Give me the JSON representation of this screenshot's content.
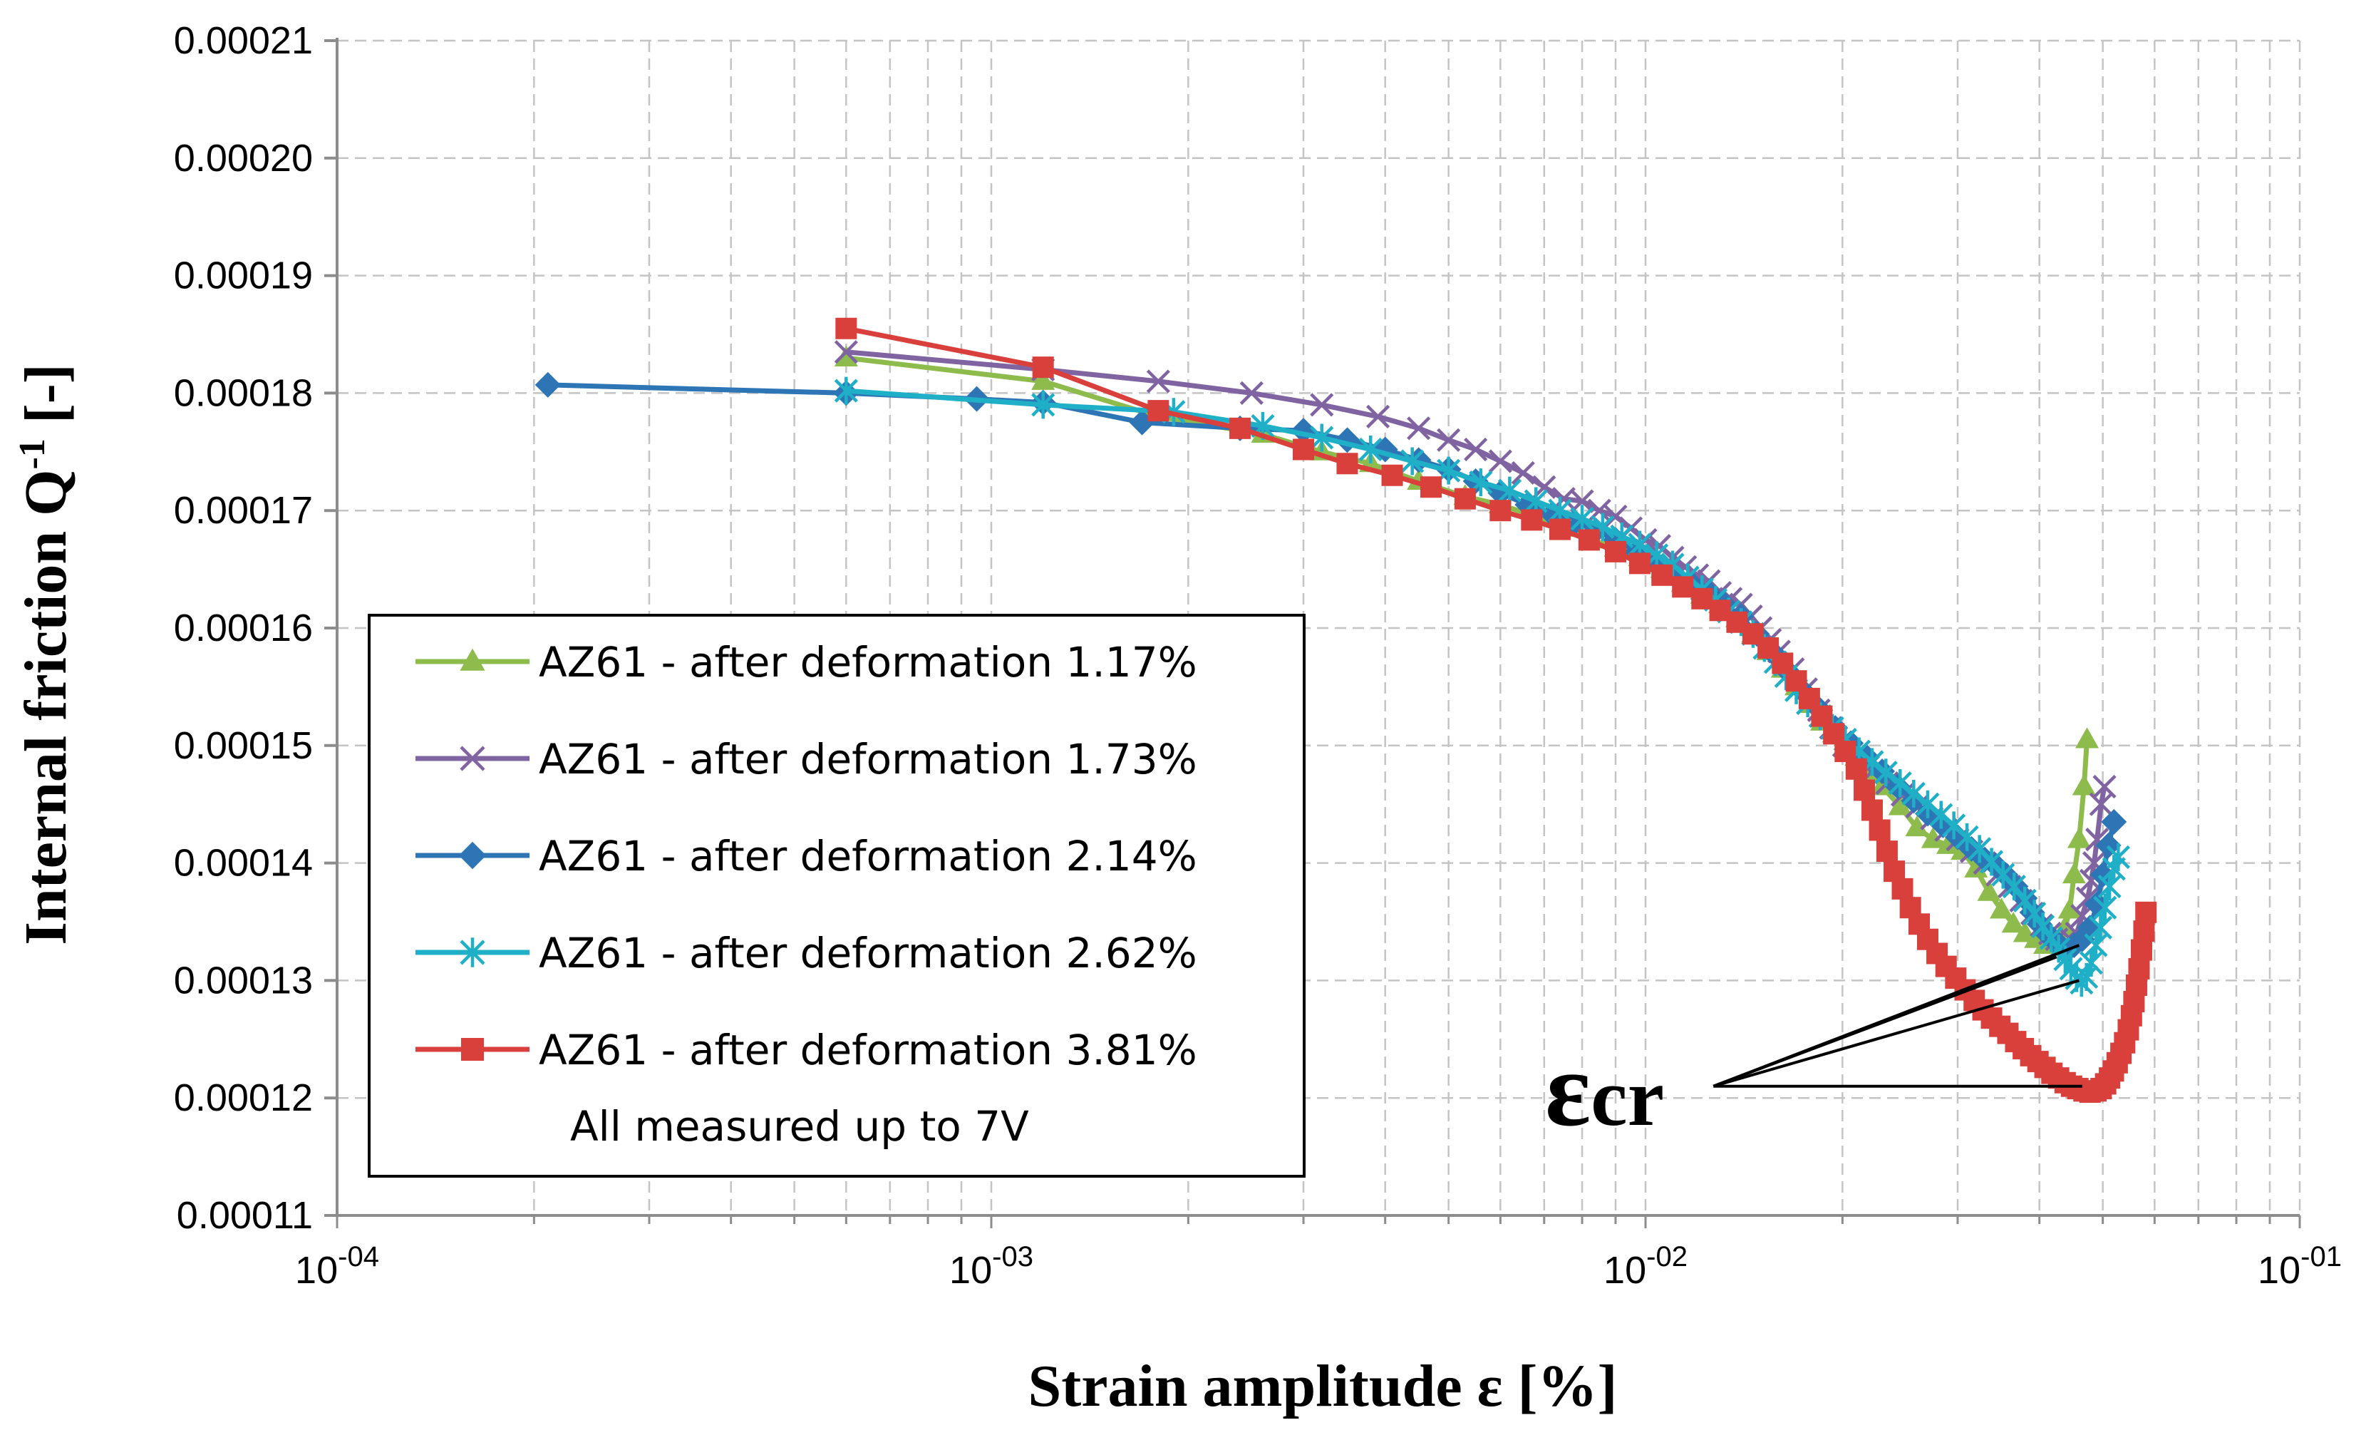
{
  "chart_data": {
    "type": "line",
    "xscale": "log",
    "xlim": [
      0.0001,
      0.1
    ],
    "ylim": [
      0.00011,
      0.00021
    ],
    "xlabel": "Strain amplitude ε [%]",
    "ylabel": "Internal friction Q",
    "ylabel_sup": "-1",
    "ylabel_suffix": " [-]",
    "x_ticks": [
      {
        "value": 0.0001,
        "base": "10",
        "exp": "-04"
      },
      {
        "value": 0.001,
        "base": "10",
        "exp": "-03"
      },
      {
        "value": 0.01,
        "base": "10",
        "exp": "-02"
      },
      {
        "value": 0.1,
        "base": "10",
        "exp": "-01"
      }
    ],
    "y_ticks": [
      "0.00011",
      "0.00012",
      "0.00013",
      "0.00014",
      "0.00015",
      "0.00016",
      "0.00017",
      "0.00018",
      "0.00019",
      "0.00020",
      "0.00021"
    ],
    "grid": true,
    "legend_position": "lower-left",
    "note": "All measured up to 7V",
    "annotation": {
      "text": "ε",
      "sub": "cr",
      "x": 0.0127,
      "y": 0.000121
    },
    "annotation_targets": [
      [
        0.0425,
        0.000132
      ],
      [
        0.046,
        0.000133
      ],
      [
        0.046,
        0.00013
      ],
      [
        0.0465,
        0.000121
      ]
    ],
    "series": [
      {
        "name": "AZ61 - after deformation 1.17%",
        "color": "#8DBB4C",
        "marker": "triangle",
        "x": [
          0.0006,
          0.0012,
          0.0018,
          0.0026,
          0.0032,
          0.0038,
          0.0045,
          0.0053,
          0.006,
          0.0068,
          0.0075,
          0.0083,
          0.009,
          0.0098,
          0.0106,
          0.0114,
          0.0122,
          0.013,
          0.0138,
          0.0146,
          0.0154,
          0.0162,
          0.017,
          0.0178,
          0.0186,
          0.0194,
          0.0202,
          0.021,
          0.022,
          0.023,
          0.0245,
          0.026,
          0.0275,
          0.029,
          0.0305,
          0.032,
          0.0335,
          0.035,
          0.0365,
          0.038,
          0.0395,
          0.0408,
          0.042,
          0.043,
          0.0438,
          0.0445,
          0.0452,
          0.046,
          0.0468,
          0.0473
        ],
        "y": [
          0.000183,
          0.000181,
          0.000178,
          0.0001765,
          0.000175,
          0.000174,
          0.0001725,
          0.0001712,
          0.0001705,
          0.0001695,
          0.0001685,
          0.0001675,
          0.0001668,
          0.000166,
          0.000165,
          0.0001638,
          0.0001628,
          0.000162,
          0.0001608,
          0.0001595,
          0.000158,
          0.0001565,
          0.000155,
          0.0001535,
          0.000152,
          0.000151,
          0.00015,
          0.000149,
          0.0001477,
          0.0001465,
          0.0001448,
          0.000143,
          0.000142,
          0.0001415,
          0.000141,
          0.0001395,
          0.0001375,
          0.000136,
          0.0001348,
          0.000134,
          0.0001335,
          0.000133,
          0.000133,
          0.0001335,
          0.0001345,
          0.000136,
          0.000139,
          0.000142,
          0.0001465,
          0.0001505
        ]
      },
      {
        "name": "AZ61 - after deformation 1.73%",
        "color": "#8064A2",
        "marker": "x",
        "x": [
          0.0006,
          0.0012,
          0.0018,
          0.0025,
          0.0032,
          0.0039,
          0.0045,
          0.005,
          0.0055,
          0.006,
          0.0065,
          0.007,
          0.0075,
          0.008,
          0.0085,
          0.009,
          0.0095,
          0.01,
          0.0105,
          0.011,
          0.0115,
          0.012,
          0.0125,
          0.013,
          0.0135,
          0.014,
          0.0145,
          0.015,
          0.0155,
          0.016,
          0.0168,
          0.0176,
          0.0184,
          0.0192,
          0.0201,
          0.0211,
          0.0222,
          0.0234,
          0.0247,
          0.026,
          0.0274,
          0.0288,
          0.03,
          0.0315,
          0.033,
          0.0345,
          0.036,
          0.0375,
          0.039,
          0.0403,
          0.0415,
          0.0425,
          0.0436,
          0.0446,
          0.0456,
          0.0465,
          0.0474,
          0.048,
          0.0485,
          0.049,
          0.0497,
          0.0503
        ],
        "y": [
          0.0001835,
          0.000182,
          0.000181,
          0.00018,
          0.000179,
          0.000178,
          0.000177,
          0.000176,
          0.0001752,
          0.0001742,
          0.0001732,
          0.000172,
          0.000171,
          0.0001708,
          0.00017,
          0.0001695,
          0.0001685,
          0.0001675,
          0.000167,
          0.000166,
          0.0001652,
          0.0001645,
          0.000164,
          0.000163,
          0.0001625,
          0.000162,
          0.000161,
          0.00016,
          0.000159,
          0.000158,
          0.0001565,
          0.0001548,
          0.000153,
          0.0001515,
          0.00015,
          0.000149,
          0.0001478,
          0.0001468,
          0.0001458,
          0.0001448,
          0.0001438,
          0.0001428,
          0.000142,
          0.000141,
          0.00014,
          0.000139,
          0.000138,
          0.0001368,
          0.0001357,
          0.0001347,
          0.000134,
          0.0001335,
          0.0001332,
          0.0001335,
          0.000134,
          0.0001355,
          0.000137,
          0.0001385,
          0.00014,
          0.000142,
          0.000145,
          0.0001465
        ]
      },
      {
        "name": "AZ61 - after deformation 2.14%",
        "color": "#2E75B6",
        "marker": "diamond",
        "x": [
          0.00021,
          0.0006,
          0.00095,
          0.0012,
          0.0017,
          0.0024,
          0.003,
          0.0035,
          0.004,
          0.0045,
          0.005,
          0.0055,
          0.006,
          0.0066,
          0.0072,
          0.0078,
          0.0084,
          0.009,
          0.0097,
          0.0104,
          0.0111,
          0.0118,
          0.0125,
          0.0132,
          0.014,
          0.0148,
          0.0156,
          0.0165,
          0.0175,
          0.0185,
          0.0195,
          0.0206,
          0.0218,
          0.023,
          0.0243,
          0.0257,
          0.027,
          0.0285,
          0.03,
          0.0315,
          0.033,
          0.0343,
          0.0355,
          0.0368,
          0.038,
          0.039,
          0.04,
          0.041,
          0.042,
          0.043,
          0.044,
          0.0452,
          0.0465,
          0.0478,
          0.049,
          0.05,
          0.051,
          0.052
        ],
        "y": [
          0.0001807,
          0.00018,
          0.0001795,
          0.0001792,
          0.0001775,
          0.000177,
          0.0001768,
          0.000176,
          0.0001752,
          0.0001743,
          0.0001735,
          0.0001725,
          0.0001715,
          0.0001705,
          0.0001697,
          0.000169,
          0.0001683,
          0.0001675,
          0.0001665,
          0.0001655,
          0.0001645,
          0.0001637,
          0.000163,
          0.000162,
          0.000161,
          0.0001595,
          0.000158,
          0.0001563,
          0.0001545,
          0.000153,
          0.0001515,
          0.0001502,
          0.000149,
          0.0001478,
          0.0001465,
          0.0001453,
          0.0001442,
          0.0001432,
          0.0001422,
          0.0001412,
          0.0001403,
          0.0001398,
          0.000139,
          0.000138,
          0.000137,
          0.0001358,
          0.0001348,
          0.000134,
          0.0001335,
          0.000133,
          0.0001325,
          0.000133,
          0.0001335,
          0.0001345,
          0.0001365,
          0.000139,
          0.0001415,
          0.0001435
        ]
      },
      {
        "name": "AZ61 - after deformation 2.62%",
        "color": "#1FB0C8",
        "marker": "star",
        "x": [
          0.0006,
          0.0012,
          0.0019,
          0.0026,
          0.0032,
          0.0038,
          0.0044,
          0.005,
          0.0056,
          0.0062,
          0.0068,
          0.0074,
          0.008,
          0.0086,
          0.0092,
          0.0098,
          0.0104,
          0.011,
          0.0116,
          0.0122,
          0.0128,
          0.0134,
          0.014,
          0.0146,
          0.0152,
          0.0158,
          0.0164,
          0.017,
          0.0177,
          0.0185,
          0.0193,
          0.0202,
          0.0212,
          0.0222,
          0.0233,
          0.0245,
          0.0257,
          0.027,
          0.0283,
          0.0296,
          0.031,
          0.0324,
          0.0338,
          0.0352,
          0.0366,
          0.038,
          0.0393,
          0.0405,
          0.0417,
          0.0428,
          0.0438,
          0.0447,
          0.0456,
          0.0464,
          0.0472,
          0.048,
          0.0488,
          0.0496,
          0.0504,
          0.0512,
          0.052,
          0.0528
        ],
        "y": [
          0.0001802,
          0.000179,
          0.0001784,
          0.0001772,
          0.0001762,
          0.0001752,
          0.0001742,
          0.0001734,
          0.0001724,
          0.0001717,
          0.0001708,
          0.00017,
          0.0001693,
          0.0001686,
          0.0001678,
          0.0001671,
          0.0001662,
          0.0001654,
          0.0001643,
          0.0001633,
          0.0001624,
          0.0001614,
          0.0001605,
          0.0001595,
          0.0001583,
          0.0001571,
          0.0001559,
          0.0001547,
          0.0001536,
          0.0001525,
          0.0001515,
          0.0001505,
          0.0001495,
          0.0001486,
          0.0001477,
          0.0001468,
          0.0001459,
          0.000145,
          0.0001441,
          0.0001432,
          0.0001422,
          0.0001412,
          0.0001401,
          0.000139,
          0.000138,
          0.0001368,
          0.0001357,
          0.0001346,
          0.0001336,
          0.0001327,
          0.0001318,
          0.000131,
          0.0001302,
          0.0001298,
          0.0001303,
          0.0001315,
          0.000133,
          0.0001345,
          0.0001362,
          0.000138,
          0.0001395,
          0.0001405
        ]
      },
      {
        "name": "AZ61 - after deformation 3.81%",
        "color": "#D9403B",
        "marker": "square",
        "x": [
          0.0006,
          0.0012,
          0.0018,
          0.0024,
          0.003,
          0.0035,
          0.0041,
          0.0047,
          0.0053,
          0.006,
          0.0067,
          0.0074,
          0.0082,
          0.009,
          0.0098,
          0.0106,
          0.0114,
          0.0122,
          0.013,
          0.0138,
          0.0146,
          0.0154,
          0.0162,
          0.017,
          0.0178,
          0.0186,
          0.0194,
          0.0202,
          0.021,
          0.0216,
          0.0222,
          0.0228,
          0.0234,
          0.024,
          0.0247,
          0.0254,
          0.0262,
          0.027,
          0.0279,
          0.0288,
          0.0298,
          0.0308,
          0.0318,
          0.0328,
          0.0338,
          0.0348,
          0.0358,
          0.0368,
          0.0378,
          0.0388,
          0.0398,
          0.0408,
          0.0418,
          0.0428,
          0.0438,
          0.0448,
          0.0458,
          0.0468,
          0.0478,
          0.0488,
          0.0497,
          0.0505,
          0.0512,
          0.0519,
          0.0526,
          0.0533,
          0.054,
          0.0547,
          0.0553,
          0.0558,
          0.0563,
          0.0568,
          0.0573,
          0.0578,
          0.0582
        ],
        "y": [
          0.0001855,
          0.0001822,
          0.0001785,
          0.000177,
          0.0001752,
          0.000174,
          0.000173,
          0.000172,
          0.000171,
          0.00017,
          0.0001692,
          0.0001684,
          0.0001675,
          0.0001665,
          0.0001655,
          0.0001645,
          0.0001635,
          0.0001625,
          0.0001615,
          0.0001605,
          0.0001595,
          0.0001583,
          0.000157,
          0.0001555,
          0.000154,
          0.0001525,
          0.000151,
          0.0001495,
          0.000148,
          0.0001462,
          0.0001445,
          0.0001428,
          0.000141,
          0.0001393,
          0.0001378,
          0.0001362,
          0.0001348,
          0.0001335,
          0.0001323,
          0.0001312,
          0.0001302,
          0.0001292,
          0.0001283,
          0.0001275,
          0.0001268,
          0.0001261,
          0.0001255,
          0.0001248,
          0.0001242,
          0.0001236,
          0.0001231,
          0.0001226,
          0.0001221,
          0.0001217,
          0.0001213,
          0.000121,
          0.0001208,
          0.0001206,
          0.0001205,
          0.0001206,
          0.0001208,
          0.0001212,
          0.0001217,
          0.0001223,
          0.000123,
          0.0001238,
          0.0001247,
          0.0001258,
          0.000127,
          0.0001282,
          0.0001296,
          0.000131,
          0.0001326,
          0.0001342,
          0.0001358
        ]
      }
    ]
  }
}
